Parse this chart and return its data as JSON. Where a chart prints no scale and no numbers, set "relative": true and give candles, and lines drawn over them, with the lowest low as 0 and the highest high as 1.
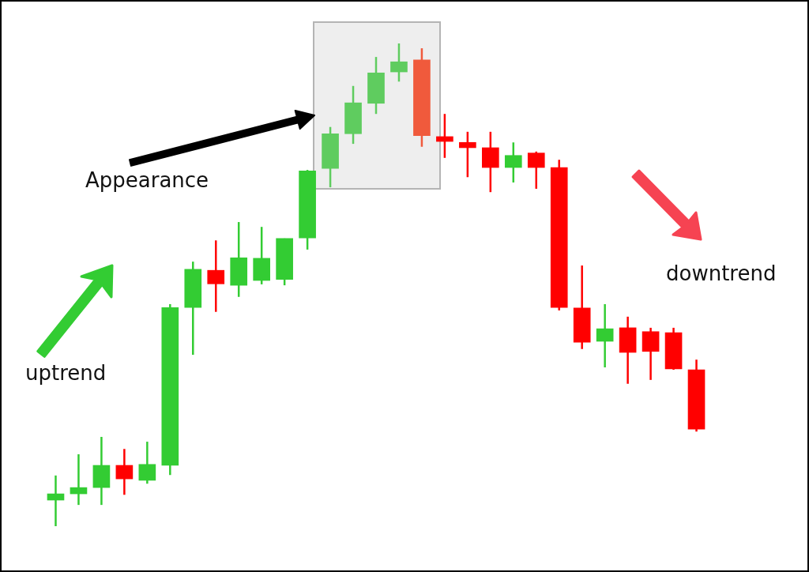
{
  "chart_data": {
    "type": "candlestick",
    "relative": true,
    "categories": [
      null,
      null,
      null,
      null,
      null,
      null,
      null,
      null,
      null,
      null,
      null,
      null,
      null,
      null,
      null,
      null,
      null,
      null,
      null,
      null,
      null,
      null,
      null,
      null,
      null,
      null,
      null,
      null,
      null
    ],
    "ohlc": [
      [
        0.054,
        0.105,
        0,
        0.067
      ],
      [
        0.067,
        0.149,
        0.044,
        0.08
      ],
      [
        0.08,
        0.185,
        0.044,
        0.126
      ],
      [
        0.126,
        0.16,
        0.065,
        0.098
      ],
      [
        0.095,
        0.175,
        0.088,
        0.128
      ],
      [
        0.126,
        0.46,
        0.106,
        0.453
      ],
      [
        0.453,
        0.548,
        0.355,
        0.532
      ],
      [
        0.53,
        0.592,
        0.444,
        0.502
      ],
      [
        0.499,
        0.63,
        0.475,
        0.556
      ],
      [
        0.509,
        0.62,
        0.501,
        0.555
      ],
      [
        0.511,
        0.596,
        0.499,
        0.596
      ],
      [
        0.597,
        0.738,
        0.573,
        0.736
      ],
      [
        0.741,
        0.827,
        0.702,
        0.813
      ],
      [
        0.813,
        0.912,
        0.792,
        0.877
      ],
      [
        0.876,
        0.972,
        0.854,
        0.939
      ],
      [
        0.941,
        1,
        0.921,
        0.962
      ],
      [
        0.966,
        0.99,
        0.786,
        0.809
      ],
      [
        0.807,
        0.854,
        0.763,
        0.797
      ],
      [
        0.795,
        0.817,
        0.723,
        0.784
      ],
      [
        0.784,
        0.817,
        0.692,
        0.743
      ],
      [
        0.743,
        0.795,
        0.712,
        0.768
      ],
      [
        0.773,
        0.776,
        0.699,
        0.743
      ],
      [
        0.743,
        0.759,
        0.447,
        0.453
      ],
      [
        0.452,
        0.54,
        0.367,
        0.381
      ],
      [
        0.383,
        0.46,
        0.329,
        0.409
      ],
      [
        0.411,
        0.434,
        0.295,
        0.36
      ],
      [
        0.403,
        0.411,
        0.303,
        0.362
      ],
      [
        0.401,
        0.411,
        0.324,
        0.326
      ],
      [
        0.324,
        0.345,
        0.196,
        0.201
      ]
    ],
    "colors": [
      "#33cc33",
      "#33cc33",
      "#33cc33",
      "#ff0000",
      "#33cc33",
      "#33cc33",
      "#33cc33",
      "#ff0000",
      "#33cc33",
      "#33cc33",
      "#33cc33",
      "#33cc33",
      "#5fcc5f",
      "#5fcc5f",
      "#5fcc5f",
      "#5fcc5f",
      "#f05a3c",
      "#ff0000",
      "#ff0000",
      "#ff0000",
      "#33cc33",
      "#ff0000",
      "#ff0000",
      "#ff0000",
      "#33cc33",
      "#ff0000",
      "#ff0000",
      "#ff0000",
      "#ff0000"
    ],
    "annotations": [
      "Appearance",
      "uptrend",
      "downtrend"
    ]
  }
}
